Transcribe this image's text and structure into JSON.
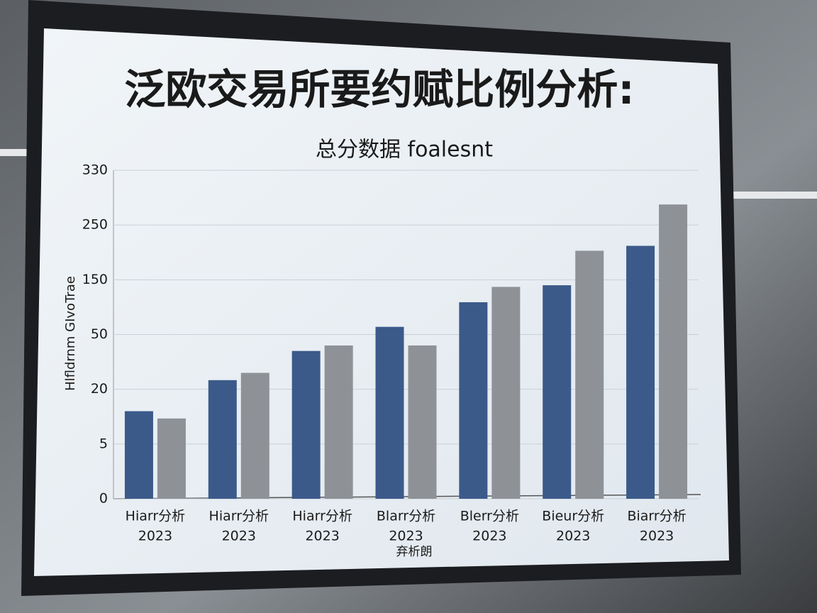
{
  "chart_data": {
    "type": "bar",
    "title": "泛欧交易所要约赋比例分析:",
    "subtitle": "总分数据 foalesnt",
    "y_label": "Hlfldrnm GIvoTrae",
    "annotation": "弃析朗",
    "categories": [
      [
        "Hiarr分析",
        "2023"
      ],
      [
        "Hiarr分析",
        "2023"
      ],
      [
        "Hiarr分析",
        "2023"
      ],
      [
        "Blarr分析",
        "2023"
      ],
      [
        "Blerr分析",
        "2023"
      ],
      [
        "Bieur分析",
        "2023"
      ],
      [
        "Biarr分析",
        "2023"
      ]
    ],
    "series": [
      {
        "color": "#3b5a8a",
        "values": [
          14,
          25,
          41,
          64,
          109,
          140,
          212
        ]
      },
      {
        "color": "#8e9196",
        "values": [
          12,
          29,
          44,
          44,
          137,
          203,
          280
        ]
      }
    ],
    "ylim": [
      0,
      330
    ],
    "yticks": [
      0,
      5,
      20,
      50,
      150,
      250,
      330
    ],
    "yscale": "piecewise",
    "grid": true
  }
}
